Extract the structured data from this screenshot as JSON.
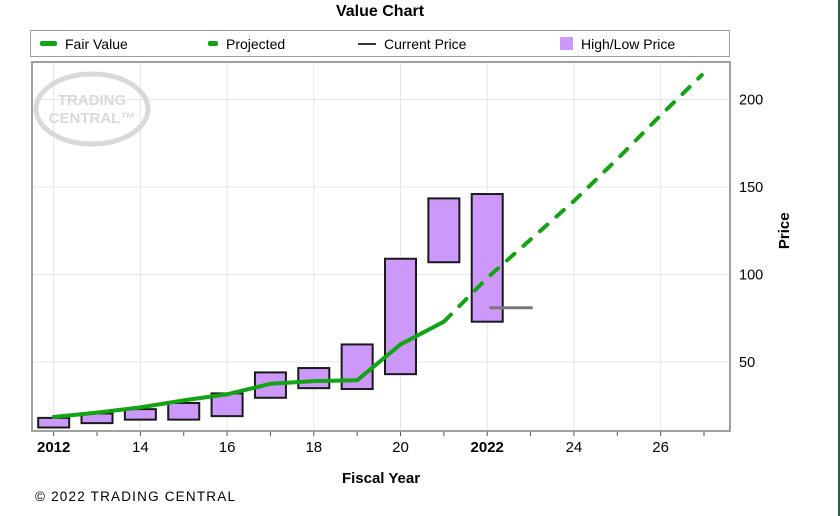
{
  "legend": {
    "items": [
      {
        "label": "Fair Value",
        "swatch": "green-solid-line"
      },
      {
        "label": "Projected",
        "swatch": "green-dashed-line"
      },
      {
        "label": "Current Price",
        "swatch": "gray-line"
      },
      {
        "label": "High/Low Price",
        "swatch": "purple-square"
      }
    ]
  },
  "footer": {
    "copyright": "© 2022 TRADING CENTRAL"
  },
  "colors": {
    "fair_value": "#12a412",
    "projected": "#12a412",
    "current_price": "#787878",
    "bar_fill": "#cc99fa",
    "bar_border": "#1a1a1a",
    "grid": "#e6e6e6",
    "plot_border": "#a0a0a0",
    "watermark": "#d9d9d9",
    "tick": "#555555",
    "page_edge": "#2f5d40"
  },
  "chart_data": {
    "type": "combo",
    "title": "Value Chart",
    "xlabel": "Fiscal Year",
    "ylabel": "Price",
    "xlim": [
      2011.5,
      2027.6
    ],
    "ylim": [
      10.5,
      221.5
    ],
    "grid": true,
    "legend_position": "top",
    "watermark": {
      "line1": "TRADING",
      "line2": "CENTRAL™"
    },
    "x_ticks": [
      {
        "label": "2012",
        "year": 2012,
        "bold": true
      },
      {
        "label": "14",
        "year": 2014,
        "bold": false
      },
      {
        "label": "16",
        "year": 2016,
        "bold": false
      },
      {
        "label": "18",
        "year": 2018,
        "bold": false
      },
      {
        "label": "20",
        "year": 2020,
        "bold": false
      },
      {
        "label": "2022",
        "year": 2022,
        "bold": true
      },
      {
        "label": "24",
        "year": 2024,
        "bold": false
      },
      {
        "label": "26",
        "year": 2026,
        "bold": false
      }
    ],
    "y_ticks": [
      50,
      100,
      150,
      200
    ],
    "fair_value": {
      "name": "Fair Value",
      "style": "solid",
      "x": [
        2012,
        2013,
        2014,
        2015,
        2016,
        2017,
        2018,
        2019,
        2020,
        2021
      ],
      "y": [
        18.5,
        21,
        24,
        28,
        31.5,
        37.5,
        39,
        39.5,
        60,
        73
      ]
    },
    "projected": {
      "name": "Projected",
      "style": "dashed",
      "x": [
        2021,
        2022,
        2023,
        2024,
        2025,
        2026,
        2026.95
      ],
      "y": [
        73,
        98,
        120,
        142,
        166,
        191,
        214
      ]
    },
    "current_price": {
      "name": "Current Price",
      "x1": 2022.05,
      "x2": 2023.05,
      "y": 81
    },
    "high_low": {
      "name": "High/Low Price",
      "years": [
        2012,
        2013,
        2014,
        2015,
        2016,
        2017,
        2018,
        2019,
        2020,
        2021,
        2022
      ],
      "high": [
        18,
        20.5,
        23,
        26.5,
        32,
        44,
        46.5,
        60,
        109,
        143.5,
        146
      ],
      "low": [
        12.5,
        15,
        17,
        17,
        19,
        29.5,
        35,
        34.5,
        43,
        107,
        73
      ]
    }
  }
}
